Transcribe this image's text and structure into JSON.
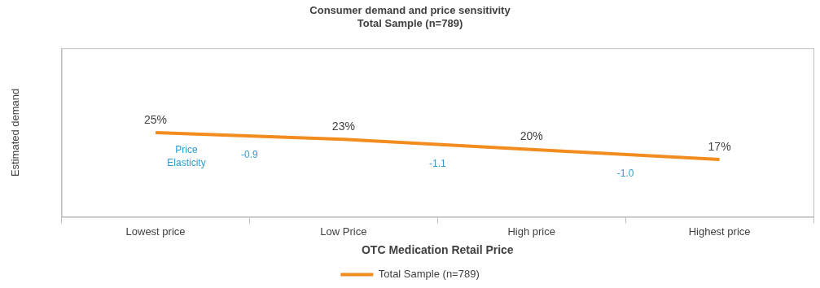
{
  "chart_data": {
    "type": "line",
    "title": [
      "Consumer demand and price sensitivity",
      "Total Sample (n=789)"
    ],
    "x_label": "OTC Medication Retail Price",
    "y_label": "Estimated demand",
    "categories": [
      "Lowest price",
      "Low Price",
      "High price",
      "Highest price"
    ],
    "series": [
      {
        "name": "Total Sample (n=789)",
        "color": "#f28c1e",
        "values": [
          25,
          23,
          20,
          17
        ],
        "value_labels": [
          "25%",
          "23%",
          "20%",
          "17%"
        ]
      }
    ],
    "ylim": [
      0,
      50
    ],
    "grid": false,
    "data_labels": true,
    "tick_labels": "x",
    "legend": "bottom",
    "annotations": [
      {
        "text": "Price Elasticity",
        "color": "#2e9bd6",
        "values": [
          -0.9,
          -1.1,
          -1.0
        ],
        "value_labels": [
          "-0.9",
          "-1.1",
          "-1.0"
        ]
      }
    ]
  }
}
